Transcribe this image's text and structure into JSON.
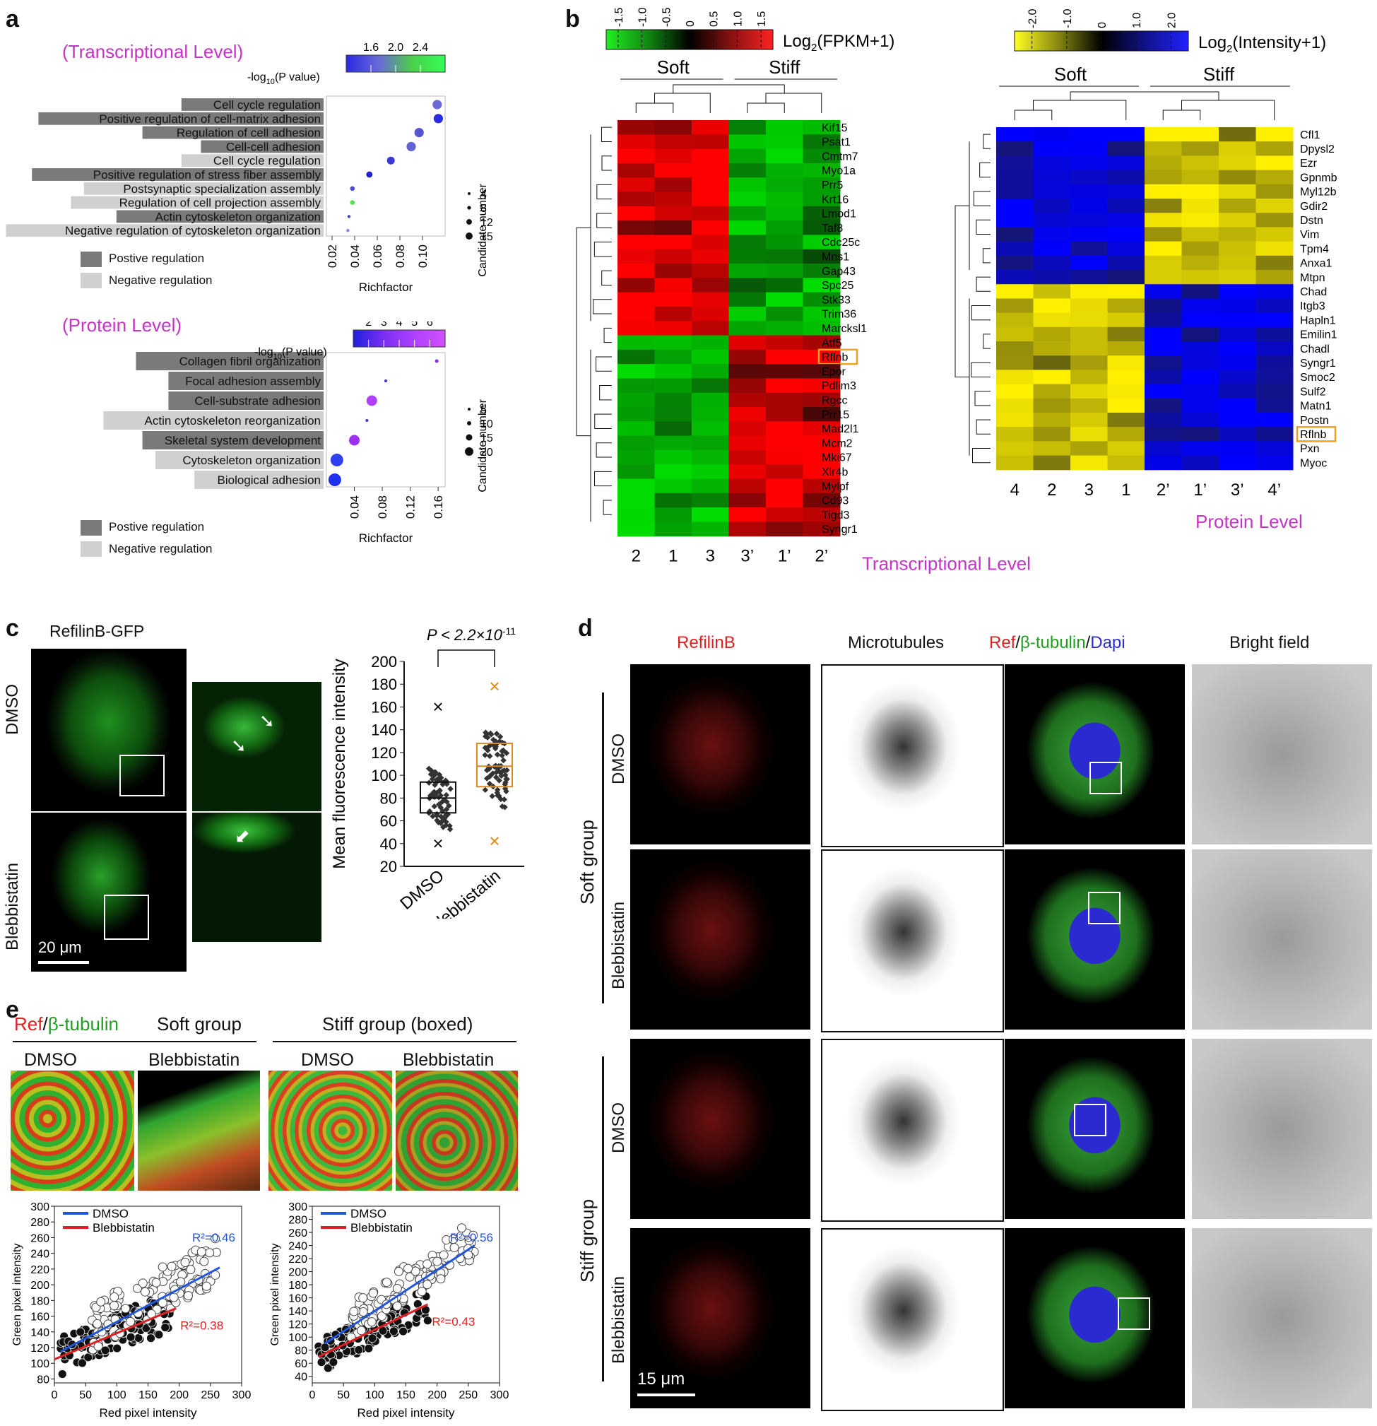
{
  "panel_labels": {
    "a": "a",
    "b": "b",
    "c": "c",
    "d": "d",
    "e": "e"
  },
  "panel_a": {
    "transcriptional_title": "(Transcriptional Level)",
    "protein_title": "(Protein Level)",
    "pvalue_label": "-log",
    "pvalue_sub": "10",
    "pvalue_paren": "(P value)",
    "candidate_label": "Candidate number",
    "richfactor_label": "Richfactor",
    "legend_positive": "Postive regulation",
    "legend_negative": "Negative regulation",
    "colors": {
      "positive": "#7a7a7a",
      "negative": "#d0d0d0"
    }
  },
  "chart_data": [
    {
      "type": "scatter",
      "id": "go-transcriptional",
      "xlabel": "Richfactor",
      "xlim": [
        0.015,
        0.12
      ],
      "x_ticks": [
        "0.02",
        "0.04",
        "0.06",
        "0.08",
        "0.10"
      ],
      "colorbar_ticks": [
        "1.6",
        "2.0",
        "2.4"
      ],
      "size_legend": [
        "4",
        "8",
        "12",
        "15"
      ],
      "categories": [
        "Cell cycle regulation",
        "Positive regulation of cell-matrix adhesion",
        "Regulation of cell adhesion",
        "Cell-cell adhesion",
        "Cell cycle regulation",
        "Positive regulation of stress fiber assembly",
        "Postsynaptic specialization assembly",
        "Regulation of cell projection assembly",
        "Actin cytoskeleton organization",
        "Negative regulation of cytoskeleton organization"
      ],
      "category_regulation": [
        "positive",
        "positive",
        "positive",
        "positive",
        "negative",
        "positive",
        "negative",
        "negative",
        "positive",
        "negative"
      ],
      "x": [
        0.113,
        0.114,
        0.097,
        0.09,
        0.072,
        0.053,
        0.038,
        0.038,
        0.035,
        0.034
      ],
      "size": [
        12,
        12,
        12,
        12,
        10,
        8,
        6,
        6,
        4,
        4
      ],
      "color": [
        "#6a6ad8",
        "#2a2ae0",
        "#5555d0",
        "#6363d4",
        "#3a3ad8",
        "#2020d0",
        "#4a4ad6",
        "#55dd55",
        "#4040d8",
        "#8080e0"
      ]
    },
    {
      "type": "scatter",
      "id": "go-protein",
      "xlabel": "Richfactor",
      "xlim": [
        0.0,
        0.17
      ],
      "x_ticks": [
        "0.04",
        "0.08",
        "0.12",
        "0.16"
      ],
      "colorbar_ticks": [
        "2",
        "3",
        "4",
        "5",
        "6"
      ],
      "size_legend": [
        "5",
        "10",
        "15",
        "20"
      ],
      "categories": [
        "Collagen fibril organization",
        "Focal adhesion assembly",
        "Cell-substrate adhesion",
        "Actin cytoskeleton reorganization",
        "Skeletal system development",
        "Cytoskeleton organization",
        "Biological adhesion"
      ],
      "category_regulation": [
        "positive",
        "positive",
        "positive",
        "negative",
        "positive",
        "negative",
        "negative"
      ],
      "x": [
        0.158,
        0.085,
        0.065,
        0.058,
        0.04,
        0.015,
        0.012
      ],
      "size": [
        5,
        4,
        15,
        4,
        15,
        18,
        18
      ],
      "color": [
        "#8a2be2",
        "#3a2ae0",
        "#b040ff",
        "#4030e0",
        "#9a30f0",
        "#3040f0",
        "#2030f0"
      ]
    },
    {
      "type": "heatmap",
      "id": "transcriptional-heatmap",
      "colorbar_label": "Log",
      "colorbar_sub": "2",
      "colorbar_paren": "(FPKM+1)",
      "colorbar_ticks": [
        "-1.5",
        "-1.0",
        "-0.5",
        "0",
        "0.5",
        "1.0",
        "1.5"
      ],
      "group_labels": [
        "Soft",
        "Stiff"
      ],
      "columns": [
        "2",
        "1",
        "3",
        "3’",
        "1’",
        "2’"
      ],
      "rows": [
        "Kif15",
        "Psat1",
        "Cmtm7",
        "Myo1a",
        "Prr5",
        "Krt16",
        "Lmod1",
        "Taf8",
        "Cdc25c",
        "Mns1",
        "Gap43",
        "Spc25",
        "Stk33",
        "Trim36",
        "Marcksl1",
        "Atf5",
        "Rflnb",
        "Epor",
        "Pdlim3",
        "Rgcc",
        "Prr15",
        "Mad2l1",
        "Mcm2",
        "Mki67",
        "Xlr4b",
        "Mylpf",
        "Cd93",
        "Tigd3",
        "Syngr1"
      ],
      "highlight_row": "Rflnb",
      "footer": "Transcriptional Level"
    },
    {
      "type": "heatmap",
      "id": "protein-heatmap",
      "colorbar_label": "Log",
      "colorbar_sub": "2",
      "colorbar_paren": "(Intensity+1)",
      "colorbar_ticks": [
        "-2.0",
        "-1.0",
        "0",
        "1.0",
        "2.0"
      ],
      "group_labels": [
        "Soft",
        "Stiff"
      ],
      "columns": [
        "4",
        "2",
        "3",
        "1",
        "2’",
        "1’",
        "3’",
        "4’"
      ],
      "rows": [
        "Cfl1",
        "Dpysl2",
        "Ezr",
        "Gpnmb",
        "Myl12b",
        "Gdir2",
        "Dstn",
        "Vim",
        "Tpm4",
        "Anxa1",
        "Mtpn",
        "Chad",
        "Itgb3",
        "Hapln1",
        "Emilin1",
        "Chadl",
        "Syngr1",
        "Smoc2",
        "Sulf2",
        "Matn1",
        "Postn",
        "Rflnb",
        "Pxn",
        "Myoc"
      ],
      "highlight_row": "Rflnb",
      "footer": "Protein Level"
    },
    {
      "type": "box",
      "id": "mean-fluorescence",
      "title": "P < 2.2×10",
      "title_exp": "-11",
      "ylabel": "Mean fluorescence intensity",
      "ylim": [
        20,
        200
      ],
      "y_ticks": [
        "20",
        "40",
        "60",
        "80",
        "100",
        "120",
        "140",
        "160",
        "180",
        "200"
      ],
      "categories": [
        "DMSO",
        "Blebbistatin"
      ],
      "series": [
        {
          "name": "DMSO",
          "q1": 67,
          "median": 80,
          "q3": 94,
          "min": 40,
          "max": 160
        },
        {
          "name": "Blebbistatin",
          "q1": 90,
          "median": 108,
          "q3": 128,
          "min": 42,
          "max": 178
        }
      ]
    },
    {
      "type": "scatter",
      "id": "soft-colocalization",
      "xlabel": "Red pixel intensity",
      "ylabel": "Green pixel intensity",
      "xlim": [
        0,
        300
      ],
      "ylim": [
        75,
        300
      ],
      "x_ticks": [
        "0",
        "50",
        "100",
        "150",
        "200",
        "250",
        "300"
      ],
      "y_ticks": [
        "80",
        "100",
        "120",
        "140",
        "160",
        "180",
        "200",
        "220",
        "240",
        "260",
        "280",
        "300"
      ],
      "legend": [
        "DMSO",
        "Blebbistatin"
      ],
      "r2_dmso": "R²=0.46",
      "r2_bleb": "R²=0.38",
      "fit_dmso": [
        [
          10,
          115
        ],
        [
          265,
          222
        ]
      ],
      "fit_bleb": [
        [
          0,
          105
        ],
        [
          195,
          170
        ]
      ]
    },
    {
      "type": "scatter",
      "id": "stiff-colocalization",
      "xlabel": "Red pixel intensity",
      "ylabel": "Green pixel intensity",
      "xlim": [
        0,
        300
      ],
      "ylim": [
        30,
        300
      ],
      "x_ticks": [
        "0",
        "50",
        "100",
        "150",
        "200",
        "250",
        "300"
      ],
      "y_ticks": [
        "40",
        "60",
        "80",
        "100",
        "120",
        "140",
        "160",
        "180",
        "200",
        "220",
        "240",
        "260",
        "280",
        "300"
      ],
      "legend": [
        "DMSO",
        "Blebbistatin"
      ],
      "r2_dmso": "R²=0.56",
      "r2_bleb": "R²=0.43",
      "fit_dmso": [
        [
          20,
          90
        ],
        [
          260,
          240
        ]
      ],
      "fit_bleb": [
        [
          10,
          70
        ],
        [
          185,
          150
        ]
      ]
    }
  ],
  "panel_c": {
    "title": "RefilinB-GFP",
    "row_dmso": "DMSO",
    "row_bleb": "Blebbistatin",
    "scale": "20 μm"
  },
  "panel_d": {
    "col_refilin": "RefilinB",
    "col_micro": "Microtubules",
    "col_merge_ref": "Ref",
    "col_merge_slash1": "/",
    "col_merge_tub": "β-tubulin",
    "col_merge_slash2": "/",
    "col_merge_dapi": "Dapi",
    "col_bright": "Bright field",
    "group_soft": "Soft group",
    "group_stiff": "Stiff group",
    "row_dmso": "DMSO",
    "row_bleb": "Blebbistatin",
    "scale": "15 μm"
  },
  "panel_e": {
    "label_ref": "Ref",
    "label_slash": "/",
    "label_tub": "β-tubulin",
    "soft_group": "Soft group",
    "stiff_group": "Stiff group (boxed)",
    "dmso": "DMSO",
    "bleb": "Blebbistatin"
  }
}
